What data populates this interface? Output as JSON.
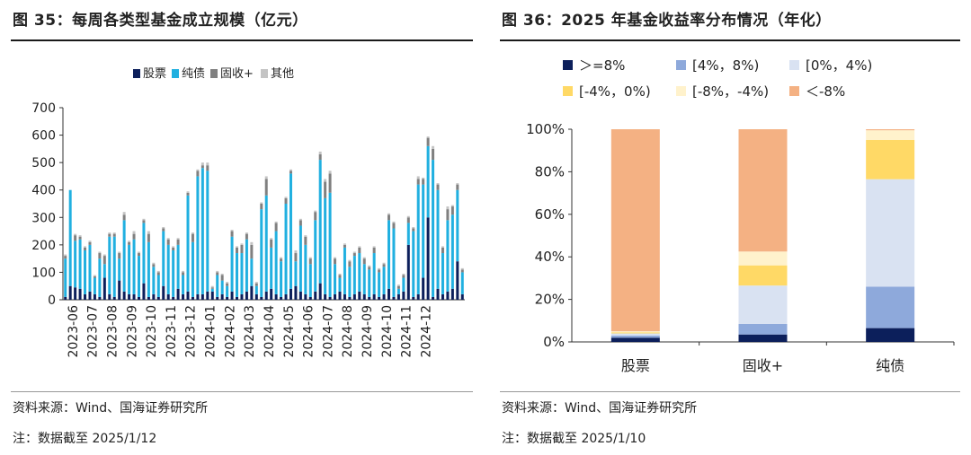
{
  "left": {
    "title": "图 35：每周各类型基金成立规模（亿元）",
    "source": "资料来源：Wind、国海证券研究所",
    "note": "注：数据截至 2025/1/12"
  },
  "right": {
    "title": "图 36：2025 年基金收益率分布情况（年化）",
    "source": "资料来源：Wind、国海证券研究所",
    "note": "注：数据截至 2025/1/10"
  },
  "colors": {
    "股票": "#0c1f5b",
    "纯债": "#21b0e0",
    "固收+": "#808080",
    "其他": "#c4c4c4",
    "ge8": "#0c1f5b",
    "r4_8": "#8ea9db",
    "r0_4": "#d9e2f2",
    "rm4_0": "#ffd966",
    "rm8_m4": "#fff2cc",
    "lt_m8": "#f4b183"
  },
  "chart_data": [
    {
      "type": "bar",
      "stacked": true,
      "title": "每周各类型基金成立规模（亿元）",
      "ylim": [
        0,
        700
      ],
      "yticks": [
        0,
        100,
        200,
        300,
        400,
        500,
        600,
        700
      ],
      "legend": {
        "placement": "top-center",
        "entries": [
          "股票",
          "纯债",
          "固收+",
          "其他"
        ]
      },
      "xtick_labels": [
        "2023-06",
        "2023-07",
        "2023-08",
        "2023-09",
        "2023-10",
        "2023-11",
        "2023-12",
        "2024-01",
        "2024-02",
        "2024-03",
        "2024-04",
        "2024-05",
        "2024-06",
        "2024-07",
        "2024-08",
        "2024-09",
        "2024-10",
        "2024-11",
        "2024-12"
      ],
      "weeks_per_month": 4,
      "series": [
        {
          "name": "股票",
          "values": [
            10,
            50,
            45,
            40,
            20,
            30,
            20,
            10,
            80,
            20,
            10,
            70,
            30,
            20,
            20,
            10,
            60,
            10,
            20,
            10,
            50,
            20,
            10,
            40,
            20,
            30,
            10,
            20,
            20,
            30,
            30,
            10,
            20,
            10,
            30,
            10,
            20,
            30,
            50,
            20,
            10,
            30,
            40,
            20,
            10,
            20,
            40,
            50,
            30,
            20,
            10,
            30,
            60,
            20,
            10,
            20,
            30,
            20,
            10,
            20,
            30,
            20,
            10,
            20,
            10,
            20,
            40,
            10,
            20,
            30,
            200,
            10,
            20,
            80,
            300,
            10,
            40,
            20,
            30,
            40,
            140,
            20
          ]
        },
        {
          "name": "纯债",
          "values": [
            140,
            350,
            170,
            180,
            160,
            170,
            60,
            140,
            50,
            210,
            220,
            80,
            260,
            180,
            200,
            150,
            220,
            200,
            100,
            80,
            200,
            180,
            170,
            160,
            70,
            350,
            200,
            430,
            460,
            440,
            10,
            80,
            50,
            40,
            200,
            160,
            150,
            190,
            100,
            30,
            320,
            350,
            150,
            230,
            130,
            330,
            420,
            90,
            240,
            180,
            120,
            260,
            450,
            350,
            380,
            110,
            50,
            170,
            110,
            140,
            140,
            110,
            100,
            150,
            90,
            100,
            250,
            250,
            20,
            50,
            80,
            240,
            400,
            340,
            260,
            500,
            360,
            150,
            260,
            270,
            260,
            80
          ]
        },
        {
          "name": "固收+",
          "values": [
            10,
            0,
            20,
            10,
            10,
            10,
            5,
            20,
            30,
            10,
            10,
            20,
            20,
            10,
            20,
            10,
            10,
            30,
            10,
            10,
            10,
            20,
            10,
            20,
            10,
            10,
            30,
            20,
            10,
            20,
            5,
            10,
            20,
            10,
            20,
            20,
            30,
            20,
            50,
            10,
            20,
            60,
            30,
            30,
            10,
            20,
            10,
            30,
            20,
            30,
            20,
            30,
            20,
            60,
            70,
            20,
            10,
            10,
            20,
            10,
            20,
            20,
            10,
            20,
            10,
            10,
            20,
            20,
            10,
            10,
            20,
            10,
            20,
            20,
            30,
            40,
            20,
            20,
            40,
            30,
            20,
            10
          ]
        },
        {
          "name": "其他",
          "values": [
            5,
            0,
            5,
            5,
            5,
            5,
            5,
            5,
            5,
            5,
            5,
            5,
            10,
            5,
            10,
            5,
            5,
            10,
            5,
            5,
            5,
            5,
            5,
            5,
            5,
            5,
            5,
            5,
            10,
            10,
            5,
            5,
            5,
            5,
            5,
            5,
            5,
            5,
            10,
            5,
            5,
            10,
            5,
            5,
            5,
            5,
            5,
            10,
            5,
            5,
            5,
            5,
            10,
            10,
            10,
            5,
            5,
            5,
            5,
            5,
            5,
            5,
            5,
            5,
            5,
            5,
            5,
            5,
            5,
            5,
            5,
            5,
            10,
            5,
            5,
            10,
            5,
            5,
            10,
            5,
            5,
            5
          ]
        }
      ]
    },
    {
      "type": "bar",
      "stacked": true,
      "percent": true,
      "title": "2025 年基金收益率分布情况（年化）",
      "categories": [
        "股票",
        "固收+",
        "纯债"
      ],
      "ylim": [
        0,
        100
      ],
      "ytick_labels": [
        "0%",
        "20%",
        "40%",
        "60%",
        "80%",
        "100%"
      ],
      "legend": {
        "placement": "top",
        "entries": [
          "＞=8%",
          "[4%，8%)",
          "[0%，4%)",
          "[-4%，0%)",
          "[-8%，-4%)",
          "＜-8%"
        ]
      },
      "series": [
        {
          "name": "＞=8%",
          "values": [
            2,
            3.5,
            6.5
          ]
        },
        {
          "name": "[4%，8%)",
          "values": [
            1,
            5,
            19.5
          ]
        },
        {
          "name": "[0%，4%)",
          "values": [
            1,
            18,
            50.5
          ]
        },
        {
          "name": "[-4%，0%)",
          "values": [
            0.5,
            9.5,
            18.5
          ]
        },
        {
          "name": "[-8%，-4%)",
          "values": [
            0.5,
            6.5,
            4.5
          ]
        },
        {
          "name": "＜-8%",
          "values": [
            95,
            57.5,
            0.5
          ]
        }
      ]
    }
  ]
}
